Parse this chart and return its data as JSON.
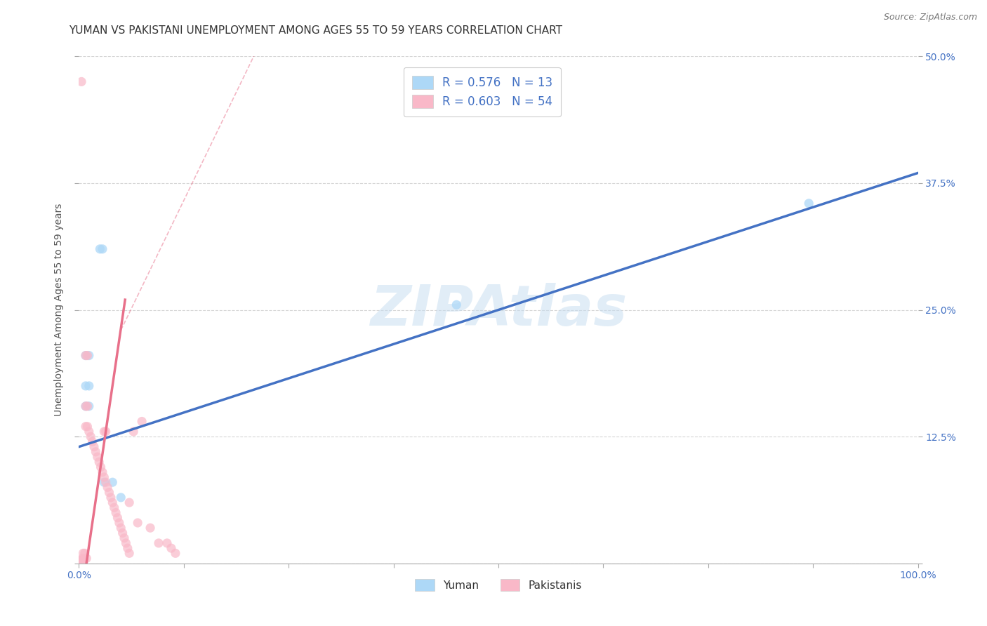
{
  "title": "YUMAN VS PAKISTANI UNEMPLOYMENT AMONG AGES 55 TO 59 YEARS CORRELATION CHART",
  "source": "Source: ZipAtlas.com",
  "ylabel": "Unemployment Among Ages 55 to 59 years",
  "xlim": [
    0,
    1.0
  ],
  "ylim": [
    0,
    0.5
  ],
  "xticks": [
    0.0,
    0.125,
    0.25,
    0.375,
    0.5,
    0.625,
    0.75,
    0.875,
    1.0
  ],
  "xticklabels": [
    "0.0%",
    "",
    "",
    "",
    "",
    "",
    "",
    "",
    "100.0%"
  ],
  "yticks": [
    0.0,
    0.125,
    0.25,
    0.375,
    0.5
  ],
  "yticklabels_right": [
    "",
    "12.5%",
    "25.0%",
    "37.5%",
    "50.0%"
  ],
  "legend_entries": [
    {
      "label": "R = 0.576   N = 13",
      "color": "#ADD8F7"
    },
    {
      "label": "R = 0.603   N = 54",
      "color": "#F9B8C8"
    }
  ],
  "watermark": "ZIPAtlas",
  "yuman_points": [
    [
      0.008,
      0.205
    ],
    [
      0.012,
      0.205
    ],
    [
      0.025,
      0.31
    ],
    [
      0.028,
      0.31
    ],
    [
      0.008,
      0.175
    ],
    [
      0.012,
      0.175
    ],
    [
      0.008,
      0.155
    ],
    [
      0.012,
      0.155
    ],
    [
      0.03,
      0.08
    ],
    [
      0.04,
      0.08
    ],
    [
      0.05,
      0.065
    ],
    [
      0.45,
      0.255
    ],
    [
      0.87,
      0.355
    ]
  ],
  "pakistani_points": [
    [
      0.003,
      0.475
    ],
    [
      0.008,
      0.205
    ],
    [
      0.01,
      0.205
    ],
    [
      0.008,
      0.155
    ],
    [
      0.01,
      0.155
    ],
    [
      0.008,
      0.135
    ],
    [
      0.01,
      0.135
    ],
    [
      0.012,
      0.13
    ],
    [
      0.014,
      0.125
    ],
    [
      0.016,
      0.12
    ],
    [
      0.018,
      0.115
    ],
    [
      0.02,
      0.11
    ],
    [
      0.022,
      0.105
    ],
    [
      0.024,
      0.1
    ],
    [
      0.026,
      0.095
    ],
    [
      0.028,
      0.09
    ],
    [
      0.03,
      0.085
    ],
    [
      0.032,
      0.08
    ],
    [
      0.034,
      0.075
    ],
    [
      0.036,
      0.07
    ],
    [
      0.038,
      0.065
    ],
    [
      0.04,
      0.06
    ],
    [
      0.042,
      0.055
    ],
    [
      0.044,
      0.05
    ],
    [
      0.046,
      0.045
    ],
    [
      0.048,
      0.04
    ],
    [
      0.05,
      0.035
    ],
    [
      0.052,
      0.03
    ],
    [
      0.054,
      0.025
    ],
    [
      0.056,
      0.02
    ],
    [
      0.058,
      0.015
    ],
    [
      0.06,
      0.01
    ],
    [
      0.004,
      0.005
    ],
    [
      0.006,
      0.004
    ],
    [
      0.003,
      0.003
    ],
    [
      0.002,
      0.002
    ],
    [
      0.001,
      0.001
    ],
    [
      0.001,
      0.003
    ],
    [
      0.001,
      0.002
    ],
    [
      0.001,
      0.001
    ],
    [
      0.065,
      0.13
    ],
    [
      0.075,
      0.14
    ],
    [
      0.06,
      0.06
    ],
    [
      0.07,
      0.04
    ],
    [
      0.085,
      0.035
    ],
    [
      0.095,
      0.02
    ],
    [
      0.105,
      0.02
    ],
    [
      0.11,
      0.015
    ],
    [
      0.03,
      0.13
    ],
    [
      0.032,
      0.13
    ],
    [
      0.115,
      0.01
    ],
    [
      0.005,
      0.01
    ],
    [
      0.007,
      0.01
    ],
    [
      0.009,
      0.005
    ]
  ],
  "yuman_line": {
    "x": [
      0.0,
      1.0
    ],
    "y": [
      0.115,
      0.385
    ]
  },
  "pakistani_solid_line": {
    "x": [
      0.0,
      0.055
    ],
    "y": [
      -0.05,
      0.26
    ]
  },
  "pakistani_dashed_line": {
    "x": [
      0.05,
      0.22
    ],
    "y": [
      0.23,
      0.52
    ]
  },
  "yuman_color": "#ADD8F7",
  "pakistani_color": "#F9B8C8",
  "yuman_line_color": "#4472C4",
  "pakistani_line_color": "#E8708A",
  "grid_color": "#CCCCCC",
  "background_color": "#FFFFFF",
  "title_fontsize": 11,
  "axis_label_fontsize": 10,
  "tick_fontsize": 10,
  "source_fontsize": 9,
  "marker_size": 90
}
